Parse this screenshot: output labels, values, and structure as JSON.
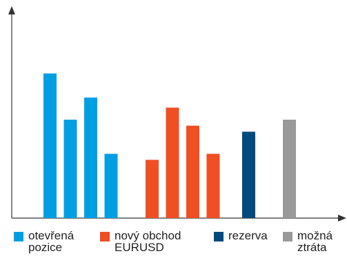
{
  "chart_data": {
    "type": "bar",
    "title": "",
    "xlabel": "",
    "ylabel": "",
    "ylim": [
      0,
      10
    ],
    "grid": false,
    "legend_placement": "bottom",
    "groups": [
      {
        "name": "otevřená\npozice",
        "color": "#009fe3",
        "values": [
          7.2,
          4.9,
          6.0,
          3.2
        ]
      },
      {
        "name": "nový obchod\nEURUSD",
        "color": "#f04e23",
        "values": [
          2.9,
          5.5,
          4.6,
          3.2
        ]
      },
      {
        "name": "rezerva",
        "color": "#004a7f",
        "values": [
          4.3
        ]
      },
      {
        "name": "možná\nztráta",
        "color": "#999999",
        "values": [
          4.9
        ]
      }
    ]
  }
}
